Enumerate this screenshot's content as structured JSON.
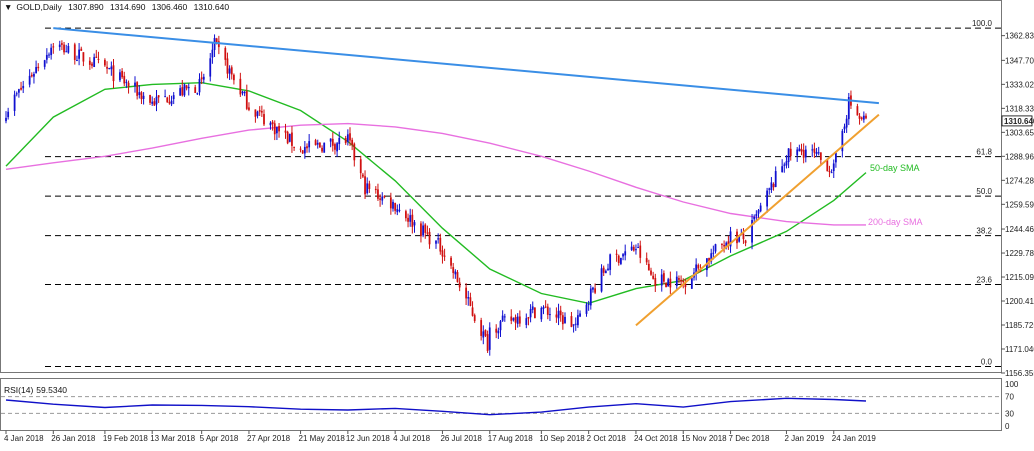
{
  "header": {
    "marker": "▼",
    "symbol": "GOLD,Daily",
    "open": "1307.890",
    "high": "1314.690",
    "low": "1306.460",
    "close": "1310.640"
  },
  "rsi_header": {
    "name": "RSI(14)",
    "value": "59.5340"
  },
  "colors": {
    "bull_candle": "#1010d0",
    "bear_candle": "#d01010",
    "resistance_line": "#3a8ee6",
    "support_line": "#f0a030",
    "sma50": "#22bb22",
    "sma200": "#e870e0",
    "fib_line": "#000000",
    "rsi_line": "#1010c8"
  },
  "chart_data": [
    {
      "type": "candlestick",
      "title": "",
      "ylim": [
        1156.355,
        1377.3
      ],
      "y_ticks": [
        "1362.835",
        "1347.705",
        "1333.020",
        "1318.335",
        "1303.650",
        "1288.965",
        "1274.280",
        "1259.595",
        "1244.465",
        "1229.780",
        "1215.095",
        "1200.410",
        "1185.725",
        "1171.040",
        "1156.355"
      ],
      "x_ticks": [
        "4 Jan 2018",
        "26 Jan 2018",
        "19 Feb 2018",
        "13 Mar 2018",
        "5 Apr 2018",
        "27 Apr 2018",
        "21 May 2018",
        "12 Jun 2018",
        "4 Jul 2018",
        "26 Jul 2018",
        "17 Aug 2018",
        "10 Sep 2018",
        "2 Oct 2018",
        "24 Oct 2018",
        "15 Nov 2018",
        "7 Dec 2018",
        "2 Jan 2019",
        "24 Jan 2019"
      ],
      "current_price_label": "1310.640",
      "price_anchors": {
        "x": [
          "4 Jan 2018",
          "26 Jan 2018",
          "19 Feb 2018",
          "13 Mar 2018",
          "5 Apr 2018",
          "11 Apr 2018",
          "27 Apr 2018",
          "21 May 2018",
          "12 Jun 2018",
          "20 Jun 2018",
          "4 Jul 2018",
          "26 Jul 2018",
          "16 Aug 2018",
          "17 Aug 2018",
          "10 Sep 2018",
          "26 Sep 2018",
          "2 Oct 2018",
          "12 Oct 2018",
          "24 Oct 2018",
          "1 Nov 2018",
          "15 Nov 2018",
          "7 Dec 2018",
          "14 Dec 2018",
          "2 Jan 2019",
          "11 Jan 2019",
          "24 Jan 2019",
          "31 Jan 2019",
          "5 Feb 2019",
          "8 Feb 2019"
        ],
        "close": [
          1317,
          1358,
          1343,
          1322,
          1333,
          1357,
          1320,
          1293,
          1299,
          1270,
          1259,
          1232,
          1174,
          1184,
          1196,
          1185,
          1203,
          1225,
          1233,
          1214,
          1212,
          1240,
          1238,
          1289,
          1293,
          1281,
          1322,
          1312,
          1310.64
        ]
      },
      "series": [
        {
          "name": "50-day SMA",
          "x": [
            "4 Jan 2018",
            "26 Jan 2018",
            "19 Feb 2018",
            "13 Mar 2018",
            "5 Apr 2018",
            "27 Apr 2018",
            "21 May 2018",
            "12 Jun 2018",
            "4 Jul 2018",
            "26 Jul 2018",
            "17 Aug 2018",
            "10 Sep 2018",
            "2 Oct 2018",
            "24 Oct 2018",
            "15 Nov 2018",
            "7 Dec 2018",
            "2 Jan 2019",
            "24 Jan 2019",
            "8 Feb 2019"
          ],
          "values": [
            1283,
            1313,
            1330,
            1333,
            1334,
            1329,
            1317,
            1298,
            1274,
            1245,
            1220,
            1205,
            1199,
            1208,
            1213,
            1228,
            1243,
            1262,
            1279
          ]
        },
        {
          "name": "200-day SMA",
          "x": [
            "4 Jan 2018",
            "26 Jan 2018",
            "19 Feb 2018",
            "13 Mar 2018",
            "5 Apr 2018",
            "27 Apr 2018",
            "21 May 2018",
            "12 Jun 2018",
            "4 Jul 2018",
            "26 Jul 2018",
            "17 Aug 2018",
            "10 Sep 2018",
            "2 Oct 2018",
            "24 Oct 2018",
            "15 Nov 2018",
            "7 Dec 2018",
            "2 Jan 2019",
            "24 Jan 2019",
            "8 Feb 2019"
          ],
          "values": [
            1281,
            1285,
            1289,
            1294,
            1300,
            1305,
            1308,
            1309,
            1307,
            1303,
            1297,
            1289,
            1280,
            1270,
            1261,
            1254,
            1249,
            1247,
            1247
          ]
        }
      ],
      "annotations": [
        {
          "text": "50-day SMA",
          "color": "#22bb22"
        },
        {
          "text": "200-day SMA",
          "color": "#e870e0"
        }
      ],
      "fibonacci_levels": [
        {
          "label": "100.0",
          "value": 1367.4
        },
        {
          "label": "61.8",
          "value": 1288.8
        },
        {
          "label": "50.0",
          "value": 1264.6
        },
        {
          "label": "38.2",
          "value": 1240.4
        },
        {
          "label": "23.6",
          "value": 1210.5
        },
        {
          "label": "0.0",
          "value": 1160.3
        }
      ],
      "trendlines": [
        {
          "name": "resistance",
          "from": [
            "26 Jan 2018",
            1367.4
          ],
          "to": [
            "14 Feb 2019",
            1321.5
          ]
        },
        {
          "name": "support",
          "from": [
            "24 Oct 2018",
            1185.5
          ],
          "to": [
            "14 Feb 2019",
            1314.5
          ]
        }
      ]
    },
    {
      "type": "line",
      "name": "RSI(14)",
      "ylim": [
        0,
        100
      ],
      "y_ticks": [
        "100",
        "70",
        "30",
        "0"
      ],
      "levels": [
        70,
        30
      ],
      "x": [
        "4 Jan 2018",
        "26 Jan 2018",
        "19 Feb 2018",
        "13 Mar 2018",
        "5 Apr 2018",
        "27 Apr 2018",
        "21 May 2018",
        "12 Jun 2018",
        "4 Jul 2018",
        "26 Jul 2018",
        "17 Aug 2018",
        "10 Sep 2018",
        "2 Oct 2018",
        "24 Oct 2018",
        "15 Nov 2018",
        "7 Dec 2018",
        "2 Jan 2019",
        "24 Jan 2019",
        "8 Feb 2019"
      ],
      "values": [
        62,
        52,
        44,
        50,
        49,
        46,
        40,
        38,
        42,
        35,
        27,
        33,
        45,
        53,
        45,
        58,
        66,
        63,
        59.53
      ]
    }
  ]
}
